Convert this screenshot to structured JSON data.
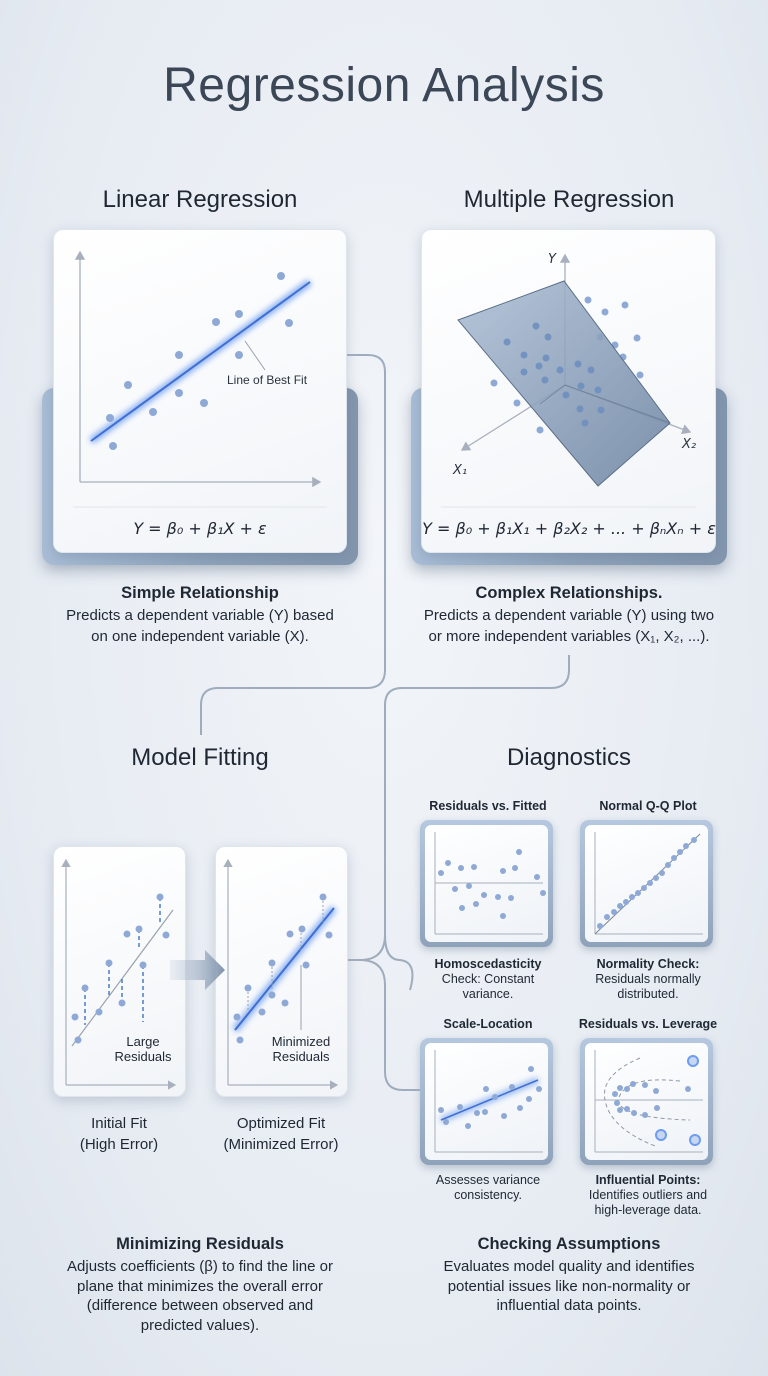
{
  "title": "Regression Analysis",
  "linear": {
    "heading": "Linear Regression",
    "annotation": "Line of Best Fit",
    "formula": "Y = β₀ + β₁X + ε",
    "subtitle": "Simple Relationship",
    "desc": [
      "Predicts a dependent variable (Y) based",
      "on one independent variable (X)."
    ]
  },
  "multiple": {
    "heading": "Multiple Regression",
    "axis_y": "Y",
    "axis_x1": "X₁",
    "axis_x2": "X₂",
    "formula": "Y = β₀ + β₁X₁ + β₂X₂ + ... + βₙXₙ + ε",
    "subtitle": "Complex Relationships.",
    "desc": [
      "Predicts a dependent variable (Y) using two",
      "or more independent variables (X₁, X₂, ...)."
    ]
  },
  "fitting": {
    "heading": "Model Fitting",
    "initial": {
      "annotation": [
        "Large",
        "Residuals"
      ],
      "caption": [
        "Initial Fit",
        "(High Error)"
      ]
    },
    "optimized": {
      "annotation": [
        "Minimized",
        "Residuals"
      ],
      "caption": [
        "Optimized Fit",
        "(Minimized Error)"
      ]
    },
    "subtitle": "Minimizing Residuals",
    "desc": [
      "Adjusts coefficients (β) to find the line or",
      "plane that minimizes the overall error",
      "(difference between observed and",
      "predicted values)."
    ]
  },
  "diagnostics": {
    "heading": "Diagnostics",
    "plots": [
      {
        "title": "Residuals vs. Fitted",
        "caption": [
          "Homoscedasticity",
          "Check: Constant",
          "variance."
        ]
      },
      {
        "title": "Normal Q-Q Plot",
        "caption": [
          "Normality Check:",
          "Residuals normally",
          "distributed."
        ]
      },
      {
        "title": "Scale-Location",
        "caption": [
          "Assesses variance",
          "consistency."
        ]
      },
      {
        "title": "Residuals vs. Leverage",
        "caption": [
          "Influential Points:",
          "Identifies outliers and",
          "high-leverage data."
        ]
      }
    ],
    "subtitle": "Checking Assumptions",
    "desc": [
      "Evaluates model quality and identifies",
      "potential issues like non-normality or",
      "influential data points."
    ]
  },
  "colors": {
    "accent": "#3f6fd0",
    "point": "#8fa9d6",
    "connector": "#9eacbd"
  }
}
